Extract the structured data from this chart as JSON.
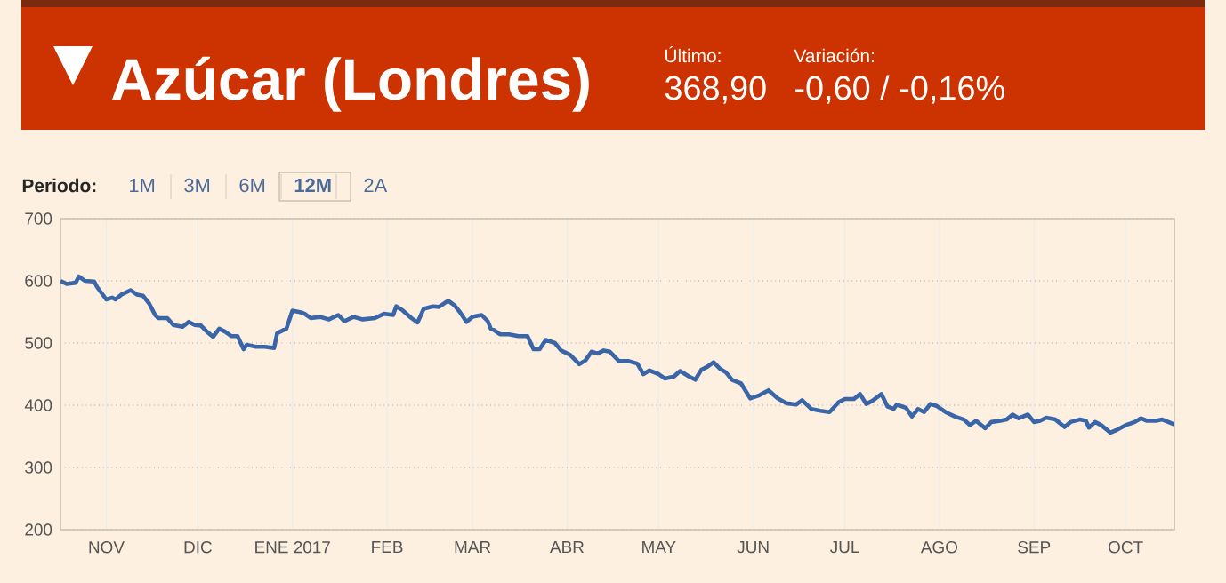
{
  "chart_data": {
    "type": "line",
    "title": "Azúcar (Londres)",
    "annotations": [
      "Último:",
      "368,90",
      "Variación:",
      "-0,60 / -0,16%",
      "Periodo:",
      "1M",
      "3M",
      "6M",
      "12M",
      "2A"
    ],
    "x": [
      "2016-10-17",
      "2016-10-19",
      "2016-10-22",
      "2016-10-23",
      "2016-10-25",
      "2016-10-28",
      "2016-10-29",
      "2016-11-01",
      "2016-11-03",
      "2016-11-04",
      "2016-11-06",
      "2016-11-09",
      "2016-11-11",
      "2016-11-13",
      "2016-11-15",
      "2016-11-17",
      "2016-11-18",
      "2016-11-21",
      "2016-11-23",
      "2016-11-26",
      "2016-11-28",
      "2016-11-30",
      "2016-12-02",
      "2016-12-04",
      "2016-12-06",
      "2016-12-08",
      "2016-12-10",
      "2016-12-12",
      "2016-12-14",
      "2016-12-16",
      "2016-12-17",
      "2016-12-20",
      "2016-12-23",
      "2016-12-26",
      "2016-12-27",
      "2016-12-30",
      "2017-01-01",
      "2017-01-04",
      "2017-01-05",
      "2017-01-07",
      "2017-01-10",
      "2017-01-13",
      "2017-01-16",
      "2017-01-18",
      "2017-01-21",
      "2017-01-24",
      "2017-01-28",
      "2017-01-31",
      "2017-02-03",
      "2017-02-04",
      "2017-02-06",
      "2017-02-09",
      "2017-02-11",
      "2017-02-13",
      "2017-02-16",
      "2017-02-18",
      "2017-02-21",
      "2017-02-23",
      "2017-02-25",
      "2017-02-27",
      "2017-03-01",
      "2017-03-04",
      "2017-03-06",
      "2017-03-07",
      "2017-03-08",
      "2017-03-10",
      "2017-03-13",
      "2017-03-16",
      "2017-03-19",
      "2017-03-21",
      "2017-03-23",
      "2017-03-25",
      "2017-03-28",
      "2017-03-30",
      "2017-04-02",
      "2017-04-05",
      "2017-04-07",
      "2017-04-09",
      "2017-04-11",
      "2017-04-13",
      "2017-04-15",
      "2017-04-18",
      "2017-04-21",
      "2017-04-24",
      "2017-04-26",
      "2017-04-28",
      "2017-05-01",
      "2017-05-03",
      "2017-05-06",
      "2017-05-08",
      "2017-05-11",
      "2017-05-13",
      "2017-05-15",
      "2017-05-17",
      "2017-05-19",
      "2017-05-21",
      "2017-05-23",
      "2017-05-25",
      "2017-05-28",
      "2017-05-31",
      "2017-06-03",
      "2017-06-06",
      "2017-06-09",
      "2017-06-12",
      "2017-06-15",
      "2017-06-17",
      "2017-06-20",
      "2017-06-23",
      "2017-06-26",
      "2017-06-29",
      "2017-07-01",
      "2017-07-04",
      "2017-07-06",
      "2017-07-08",
      "2017-07-10",
      "2017-07-13",
      "2017-07-15",
      "2017-07-17",
      "2017-07-18",
      "2017-07-21",
      "2017-07-23",
      "2017-07-25",
      "2017-07-27",
      "2017-07-29",
      "2017-07-31",
      "2017-08-03",
      "2017-08-06",
      "2017-08-09",
      "2017-08-11",
      "2017-08-13",
      "2017-08-16",
      "2017-08-18",
      "2017-08-21",
      "2017-08-23",
      "2017-08-25",
      "2017-08-27",
      "2017-08-30",
      "2017-09-01",
      "2017-09-03",
      "2017-09-05",
      "2017-09-08",
      "2017-09-11",
      "2017-09-13",
      "2017-09-16",
      "2017-09-18",
      "2017-09-19",
      "2017-09-21",
      "2017-09-23",
      "2017-09-26",
      "2017-09-28",
      "2017-10-01",
      "2017-10-04",
      "2017-10-06",
      "2017-10-08",
      "2017-10-11",
      "2017-10-13",
      "2017-10-15",
      "2017-10-17"
    ],
    "series": [
      {
        "color": "#3a66a8",
        "values": [
          600,
          595,
          597,
          607,
          600,
          599,
          590,
          570,
          573,
          570,
          578,
          585,
          578,
          576,
          564,
          545,
          540,
          540,
          529,
          526,
          534,
          529,
          528,
          518,
          510,
          523,
          518,
          511,
          511,
          490,
          497,
          494,
          494,
          492,
          516,
          523,
          552,
          549,
          547,
          540,
          542,
          538,
          545,
          535,
          542,
          538,
          540,
          547,
          545,
          559,
          553,
          540,
          533,
          555,
          559,
          558,
          568,
          561,
          549,
          534,
          542,
          545,
          535,
          523,
          521,
          514,
          514,
          511,
          511,
          490,
          490,
          505,
          500,
          488,
          481,
          466,
          472,
          486,
          483,
          488,
          486,
          471,
          471,
          467,
          450,
          456,
          450,
          443,
          446,
          455,
          446,
          441,
          457,
          462,
          469,
          459,
          453,
          441,
          435,
          411,
          416,
          424,
          411,
          403,
          401,
          408,
          394,
          391,
          389,
          405,
          410,
          410,
          418,
          402,
          407,
          418,
          398,
          394,
          401,
          396,
          382,
          394,
          389,
          402,
          399,
          389,
          382,
          377,
          368,
          375,
          363,
          373,
          375,
          377,
          385,
          379,
          385,
          373,
          375,
          380,
          377,
          365,
          373,
          377,
          375,
          364,
          373,
          368,
          356,
          360,
          368,
          373,
          379,
          375,
          375,
          377,
          373,
          369
        ]
      }
    ],
    "xlim": [
      "2016-10-17",
      "2017-10-17"
    ],
    "xticks": [
      {
        "value": "2016-11-01",
        "label": "NOV"
      },
      {
        "value": "2016-12-01",
        "label": "DIC"
      },
      {
        "value": "2017-01-01",
        "label": "ENE 2017"
      },
      {
        "value": "2017-02-01",
        "label": "FEB"
      },
      {
        "value": "2017-03-01",
        "label": "MAR"
      },
      {
        "value": "2017-04-01",
        "label": "ABR"
      },
      {
        "value": "2017-05-01",
        "label": "MAY"
      },
      {
        "value": "2017-06-01",
        "label": "JUN"
      },
      {
        "value": "2017-07-01",
        "label": "JUL"
      },
      {
        "value": "2017-08-01",
        "label": "AGO"
      },
      {
        "value": "2017-09-01",
        "label": "SEP"
      },
      {
        "value": "2017-10-01",
        "label": "OCT"
      }
    ],
    "ylim": [
      200,
      700
    ],
    "yticks": [
      200,
      300,
      400,
      500,
      600,
      700
    ],
    "grid": true,
    "line_style": "solid"
  }
}
